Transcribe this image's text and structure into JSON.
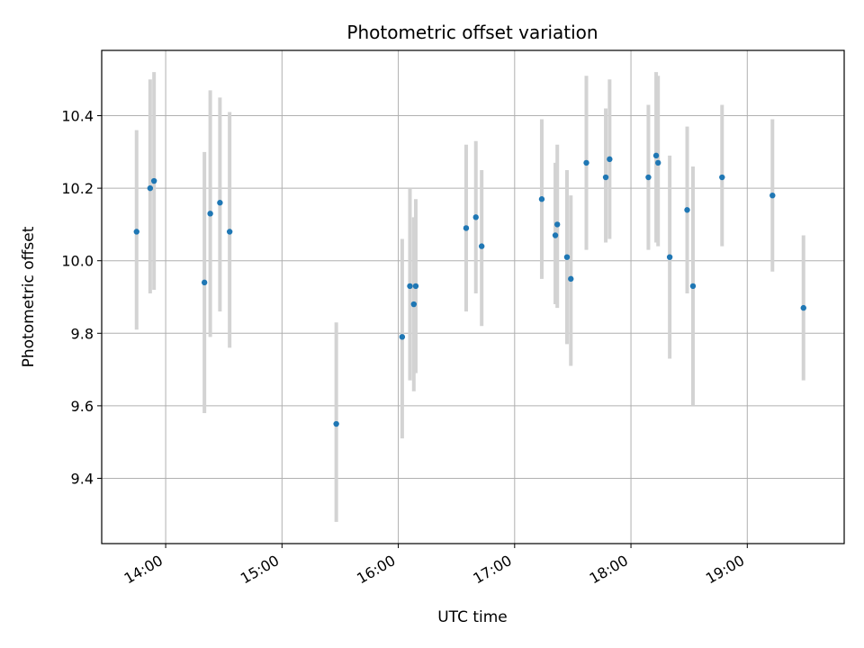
{
  "chart_data": {
    "type": "scatter",
    "title": "Photometric offset variation",
    "xlabel": "UTC time",
    "ylabel": "Photometric offset",
    "grid": true,
    "xlim": [
      "13:27",
      "19:50"
    ],
    "ylim": [
      9.22,
      10.58
    ],
    "x_ticks": [
      "14:00",
      "15:00",
      "16:00",
      "17:00",
      "18:00",
      "19:00"
    ],
    "y_ticks": [
      "9.4",
      "9.6",
      "9.8",
      "10.0",
      "10.2",
      "10.4"
    ],
    "marker_color": "#1f77b4",
    "errorbar_color": "#d3d3d3",
    "points": [
      {
        "time": "13:45",
        "y": 10.08,
        "lo": 9.81,
        "hi": 10.36
      },
      {
        "time": "13:52",
        "y": 10.2,
        "lo": 9.91,
        "hi": 10.5
      },
      {
        "time": "13:54",
        "y": 10.22,
        "lo": 9.92,
        "hi": 10.52
      },
      {
        "time": "14:20",
        "y": 9.94,
        "lo": 9.58,
        "hi": 10.3
      },
      {
        "time": "14:23",
        "y": 10.13,
        "lo": 9.79,
        "hi": 10.47
      },
      {
        "time": "14:28",
        "y": 10.16,
        "lo": 9.86,
        "hi": 10.45
      },
      {
        "time": "14:33",
        "y": 10.08,
        "lo": 9.76,
        "hi": 10.41
      },
      {
        "time": "15:28",
        "y": 9.55,
        "lo": 9.28,
        "hi": 9.83
      },
      {
        "time": "16:02",
        "y": 9.79,
        "lo": 9.51,
        "hi": 10.06
      },
      {
        "time": "16:06",
        "y": 9.93,
        "lo": 9.67,
        "hi": 10.2
      },
      {
        "time": "16:08",
        "y": 9.88,
        "lo": 9.64,
        "hi": 10.12
      },
      {
        "time": "16:09",
        "y": 9.93,
        "lo": 9.69,
        "hi": 10.17
      },
      {
        "time": "16:35",
        "y": 10.09,
        "lo": 9.86,
        "hi": 10.32
      },
      {
        "time": "16:40",
        "y": 10.12,
        "lo": 9.91,
        "hi": 10.33
      },
      {
        "time": "16:43",
        "y": 10.04,
        "lo": 9.82,
        "hi": 10.25
      },
      {
        "time": "17:14",
        "y": 10.17,
        "lo": 9.95,
        "hi": 10.39
      },
      {
        "time": "17:21",
        "y": 10.07,
        "lo": 9.88,
        "hi": 10.27
      },
      {
        "time": "17:22",
        "y": 10.1,
        "lo": 9.87,
        "hi": 10.32
      },
      {
        "time": "17:27",
        "y": 10.01,
        "lo": 9.77,
        "hi": 10.25
      },
      {
        "time": "17:29",
        "y": 9.95,
        "lo": 9.71,
        "hi": 10.18
      },
      {
        "time": "17:37",
        "y": 10.27,
        "lo": 10.03,
        "hi": 10.51
      },
      {
        "time": "17:47",
        "y": 10.23,
        "lo": 10.05,
        "hi": 10.42
      },
      {
        "time": "17:49",
        "y": 10.28,
        "lo": 10.06,
        "hi": 10.5
      },
      {
        "time": "18:09",
        "y": 10.23,
        "lo": 10.03,
        "hi": 10.43
      },
      {
        "time": "18:13",
        "y": 10.29,
        "lo": 10.05,
        "hi": 10.52
      },
      {
        "time": "18:14",
        "y": 10.27,
        "lo": 10.04,
        "hi": 10.51
      },
      {
        "time": "18:20",
        "y": 10.01,
        "lo": 9.73,
        "hi": 10.29
      },
      {
        "time": "18:29",
        "y": 10.14,
        "lo": 9.91,
        "hi": 10.37
      },
      {
        "time": "18:32",
        "y": 9.93,
        "lo": 9.6,
        "hi": 10.26
      },
      {
        "time": "18:47",
        "y": 10.23,
        "lo": 10.04,
        "hi": 10.43
      },
      {
        "time": "19:13",
        "y": 10.18,
        "lo": 9.97,
        "hi": 10.39
      },
      {
        "time": "19:29",
        "y": 9.87,
        "lo": 9.67,
        "hi": 10.07
      }
    ]
  }
}
